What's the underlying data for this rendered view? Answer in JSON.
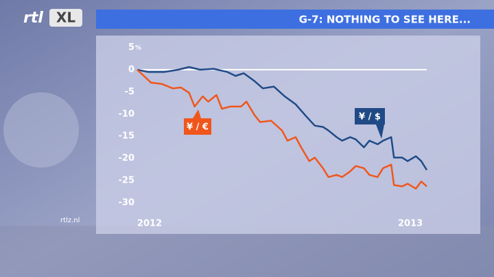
{
  "branding": {
    "logo_left": "rtl",
    "logo_right": "XL",
    "website": "rtlz.nl"
  },
  "chart_data": {
    "type": "line",
    "title": "G-7: NOTHING TO SEE HERE...",
    "y_unit": "%",
    "xlim": [
      2012,
      2013.06
    ],
    "xticks": [
      2012,
      2013
    ],
    "ylim": [
      -32,
      5
    ],
    "yticks": [
      5,
      0,
      -5,
      -10,
      -15,
      -20,
      -25,
      -30
    ],
    "zero_line": true,
    "series": [
      {
        "name": "¥ / $",
        "color": "#1f4a86",
        "x": [
          2012,
          2012.04,
          2012.1,
          2012.15,
          2012.19,
          2012.23,
          2012.28,
          2012.33,
          2012.36,
          2012.39,
          2012.43,
          2012.46,
          2012.5,
          2012.54,
          2012.58,
          2012.62,
          2012.65,
          2012.68,
          2012.7,
          2012.73,
          2012.75,
          2012.78,
          2012.8,
          2012.83,
          2012.85,
          2012.88,
          2012.9,
          2012.93,
          2012.94,
          2012.97,
          2012.99,
          2013.02,
          2013.04,
          2013.06
        ],
        "values": [
          0,
          -0.5,
          -0.5,
          0,
          0.6,
          0,
          0.2,
          -0.5,
          -1.4,
          -0.8,
          -2.6,
          -4.2,
          -3.8,
          -6,
          -7.8,
          -10.6,
          -12.6,
          -12.9,
          -13.7,
          -15.2,
          -16,
          -15.2,
          -15.7,
          -17.5,
          -16,
          -16.8,
          -16,
          -15.2,
          -19.8,
          -19.8,
          -20.6,
          -19.5,
          -20.6,
          -22.6
        ]
      },
      {
        "name": "¥ / €",
        "color": "#f0561c",
        "x": [
          2012,
          2012.03,
          2012.05,
          2012.09,
          2012.13,
          2012.16,
          2012.19,
          2012.21,
          2012.24,
          2012.26,
          2012.29,
          2012.31,
          2012.34,
          2012.38,
          2012.4,
          2012.43,
          2012.45,
          2012.49,
          2012.53,
          2012.55,
          2012.58,
          2012.6,
          2012.63,
          2012.65,
          2012.68,
          2012.7,
          2012.73,
          2012.75,
          2012.78,
          2012.8,
          2012.83,
          2012.85,
          2012.88,
          2012.9,
          2012.93,
          2012.94,
          2012.97,
          2012.99,
          2013.02,
          2013.04,
          2013.06
        ],
        "values": [
          0,
          -1.7,
          -2.9,
          -3.2,
          -4.2,
          -4,
          -5.2,
          -8.3,
          -6,
          -7.2,
          -5.7,
          -8.8,
          -8.3,
          -8.3,
          -7.2,
          -10.3,
          -11.8,
          -11.5,
          -13.7,
          -16,
          -15.2,
          -17.5,
          -20.6,
          -19.8,
          -22.2,
          -24.2,
          -23.7,
          -24.2,
          -22.9,
          -21.7,
          -22.2,
          -23.7,
          -24.2,
          -22.2,
          -21.4,
          -26,
          -26.3,
          -25.7,
          -26.8,
          -25.2,
          -26.3
        ]
      }
    ]
  }
}
